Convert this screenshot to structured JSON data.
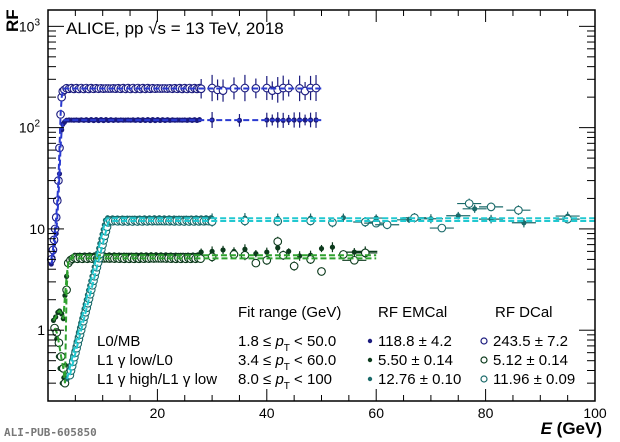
{
  "chart_data": {
    "type": "scatter",
    "title": "ALICE, pp √s = 13 TeV, 2018",
    "xlabel": "E (GeV)",
    "xlabel_var": "E",
    "xlabel_unit": " (GeV)",
    "ylabel": "RF",
    "xlim": [
      0,
      100
    ],
    "ylim": [
      0.2,
      1450
    ],
    "yscale": "log",
    "xticks": [
      20,
      40,
      60,
      80,
      100
    ],
    "xtick_labels": [
      "20",
      "40",
      "60",
      "80",
      "100"
    ],
    "yticks": [
      1,
      10,
      100,
      1000
    ],
    "ytick_labels": [
      "1",
      "10",
      "10²",
      "10³"
    ],
    "grid": false,
    "legend_header": {
      "fit_range": "Fit range (GeV)",
      "rf_emcal": "RF EMCal",
      "rf_dcal": "RF DCal"
    },
    "legend_rows": [
      {
        "label": "L0/MB",
        "fit_range": "1.8 ≤ pT < 50.0",
        "fit_lo": "1.8",
        "fit_hi": "50.0",
        "rf_emcal": "118.8 ± 4.2",
        "rf_dcal": "243.5 ± 7.2"
      },
      {
        "label": "L1 γ low/L0",
        "fit_range": "3.4 ≤ pT < 60.0",
        "fit_lo": "3.4",
        "fit_hi": "60.0",
        "rf_emcal": "5.50 ± 0.14",
        "rf_dcal": "5.12 ± 0.14"
      },
      {
        "label": "L1 γ high/L1 γ low",
        "fit_range": "8.0 ≤ pT < 100",
        "fit_lo": "8.0",
        "fit_hi": "100",
        "rf_emcal": "12.76 ± 0.10",
        "rf_dcal": "11.96 ± 0.09"
      }
    ],
    "series": [
      {
        "name": "L0/MB EMCal",
        "marker": "filled",
        "color": "#1b1b7e",
        "fit_color": "#2a3ad0",
        "plateau": 118.8,
        "fit_range": [
          1.8,
          50.0
        ],
        "turn_on": [
          [
            0.6,
            4.5
          ],
          [
            0.9,
            5.2
          ],
          [
            1.1,
            6.0
          ],
          [
            1.3,
            7.5
          ],
          [
            1.5,
            9.0
          ],
          [
            1.7,
            13
          ],
          [
            1.9,
            20
          ],
          [
            2.1,
            35
          ],
          [
            2.3,
            65
          ],
          [
            2.5,
            95
          ],
          [
            2.7,
            108
          ],
          [
            3.0,
            113
          ]
        ],
        "points": [
          [
            5,
            116
          ],
          [
            10,
            118
          ],
          [
            15,
            118.5
          ],
          [
            20,
            118.8
          ],
          [
            25,
            119
          ],
          [
            30,
            119
          ],
          [
            35,
            118
          ],
          [
            40,
            119
          ],
          [
            41,
            119
          ],
          [
            42,
            119
          ],
          [
            43,
            118
          ],
          [
            44,
            119
          ],
          [
            45,
            119
          ],
          [
            46,
            119
          ],
          [
            47,
            119
          ],
          [
            48,
            119
          ],
          [
            49,
            119
          ]
        ],
        "yerr_frac_far": 0.2
      },
      {
        "name": "L0/MB DCal",
        "marker": "open",
        "color": "#1b1b7e",
        "fit_color": "#2a3ad0",
        "plateau": 243.5,
        "fit_range": [
          1.8,
          50.0
        ],
        "turn_on": [
          [
            0.6,
            5.0
          ],
          [
            0.9,
            6.2
          ],
          [
            1.1,
            7.8
          ],
          [
            1.3,
            10
          ],
          [
            1.5,
            13
          ],
          [
            1.7,
            19
          ],
          [
            1.9,
            30
          ],
          [
            2.1,
            63
          ],
          [
            2.3,
            135
          ],
          [
            2.5,
            200
          ],
          [
            2.7,
            228
          ],
          [
            3.0,
            236
          ]
        ],
        "points": [
          [
            5,
            240
          ],
          [
            10,
            242
          ],
          [
            15,
            244
          ],
          [
            20,
            243
          ],
          [
            25,
            245
          ],
          [
            28,
            242
          ],
          [
            30,
            246
          ],
          [
            31,
            236
          ],
          [
            32,
            232
          ],
          [
            34,
            244
          ],
          [
            36,
            246
          ],
          [
            38,
            244
          ],
          [
            40,
            246
          ],
          [
            41,
            232
          ],
          [
            42,
            236
          ],
          [
            43,
            246
          ],
          [
            44,
            246
          ],
          [
            46,
            244
          ],
          [
            47,
            230
          ],
          [
            48,
            246
          ],
          [
            49,
            246
          ]
        ],
        "yerr_frac_far": 0.35
      },
      {
        "name": "L1 gamma low/L0 EMCal",
        "marker": "filled",
        "color": "#0c3a1c",
        "fit_color": "#2fa12f",
        "plateau": 5.5,
        "fit_range": [
          3.4,
          60.0
        ],
        "turn_on": [
          [
            1.0,
            1.25
          ],
          [
            1.4,
            1.35
          ],
          [
            1.8,
            1.5
          ],
          [
            2.1,
            1.55
          ],
          [
            2.5,
            1.45
          ],
          [
            2.8,
            1.3
          ],
          [
            3.1,
            2.2
          ],
          [
            3.4,
            3.4
          ],
          [
            3.7,
            4.6
          ],
          [
            4.0,
            5.1
          ],
          [
            4.5,
            5.3
          ]
        ],
        "low": [
          [
            1.6,
            0.82
          ],
          [
            1.9,
            0.55
          ],
          [
            2.2,
            0.42
          ],
          [
            2.6,
            0.3
          ],
          [
            2.9,
            0.34
          ],
          [
            3.2,
            0.45
          ]
        ],
        "points": [
          [
            8,
            5.5
          ],
          [
            12,
            5.5
          ],
          [
            16,
            5.6
          ],
          [
            20,
            5.6
          ],
          [
            24,
            5.7
          ],
          [
            28,
            5.9
          ],
          [
            30,
            6.0
          ],
          [
            32,
            6.2
          ],
          [
            34,
            6.0
          ],
          [
            36,
            6.3
          ],
          [
            38,
            5.7
          ],
          [
            40,
            5.9
          ],
          [
            42,
            6.5
          ],
          [
            44,
            6.0
          ],
          [
            46,
            5.4
          ],
          [
            48,
            5.5
          ],
          [
            50,
            6.4
          ],
          [
            52,
            6.6
          ],
          [
            56,
            5.9
          ],
          [
            58,
            6.0
          ]
        ]
      },
      {
        "name": "L1 gamma low/L0 DCal",
        "marker": "open",
        "color": "#0c3a1c",
        "fit_color": "#2fa12f",
        "plateau": 5.12,
        "fit_range": [
          3.4,
          60.0
        ],
        "turn_on": [
          [
            1.2,
            1.05
          ],
          [
            1.6,
            0.95
          ],
          [
            2.0,
            0.75
          ],
          [
            2.4,
            0.55
          ],
          [
            2.8,
            0.42
          ],
          [
            3.1,
            0.3
          ],
          [
            3.4,
            2.5
          ],
          [
            3.7,
            4.6
          ],
          [
            4.1,
            4.9
          ]
        ],
        "points": [
          [
            8,
            5.1
          ],
          [
            12,
            5.0
          ],
          [
            16,
            5.1
          ],
          [
            20,
            5.0
          ],
          [
            24,
            5.2
          ],
          [
            26,
            4.7
          ],
          [
            30,
            5.3
          ],
          [
            34,
            5.6
          ],
          [
            36,
            5.5
          ],
          [
            38,
            4.6
          ],
          [
            40,
            4.9
          ],
          [
            42,
            7.5
          ],
          [
            43,
            5.5
          ],
          [
            45,
            4.3
          ],
          [
            48,
            5.0
          ],
          [
            50,
            3.8
          ],
          [
            54,
            5.6
          ],
          [
            56,
            4.9
          ],
          [
            58,
            5.8
          ]
        ]
      },
      {
        "name": "L1 gamma high/L1 gamma low EMCal",
        "marker": "filled",
        "color": "#1a6a6a",
        "fit_color": "#22c8d0",
        "plateau": 12.76,
        "fit_range": [
          8.0,
          100
        ],
        "turn_on_linear": [
          3.5,
          0.33,
          10.5,
          12.2
        ],
        "points": [
          [
            12,
            12.6
          ],
          [
            18,
            12.7
          ],
          [
            24,
            12.8
          ],
          [
            30,
            12.7
          ],
          [
            36,
            12.8
          ],
          [
            42,
            12.7
          ],
          [
            48,
            12.8
          ],
          [
            54,
            12.9
          ],
          [
            60,
            12.8
          ],
          [
            66,
            12.3
          ],
          [
            70,
            12.6
          ],
          [
            75,
            13.5
          ],
          [
            78,
            15.8
          ],
          [
            81,
            12.5
          ],
          [
            87,
            11.5
          ],
          [
            95,
            13.4
          ]
        ]
      },
      {
        "name": "L1 gamma high/L1 gamma low DCal",
        "marker": "open",
        "color": "#1a6a6a",
        "fit_color": "#22c8d0",
        "plateau": 11.96,
        "fit_range": [
          8.0,
          100
        ],
        "turn_on_linear": [
          4.0,
          0.36,
          11.0,
          11.6
        ],
        "points": [
          [
            12,
            11.9
          ],
          [
            18,
            12.0
          ],
          [
            24,
            11.9
          ],
          [
            30,
            11.8
          ],
          [
            36,
            12.0
          ],
          [
            42,
            11.9
          ],
          [
            48,
            12.0
          ],
          [
            52,
            11.6
          ],
          [
            58,
            11.7
          ],
          [
            60,
            11.4
          ],
          [
            62,
            11.0
          ],
          [
            67,
            12.9
          ],
          [
            72,
            10.2
          ],
          [
            77,
            17.8
          ],
          [
            81,
            16.5
          ],
          [
            86,
            15.3
          ],
          [
            95,
            12.5
          ]
        ]
      }
    ]
  },
  "footer": {
    "watermark": "ALI-PUB-605850"
  }
}
